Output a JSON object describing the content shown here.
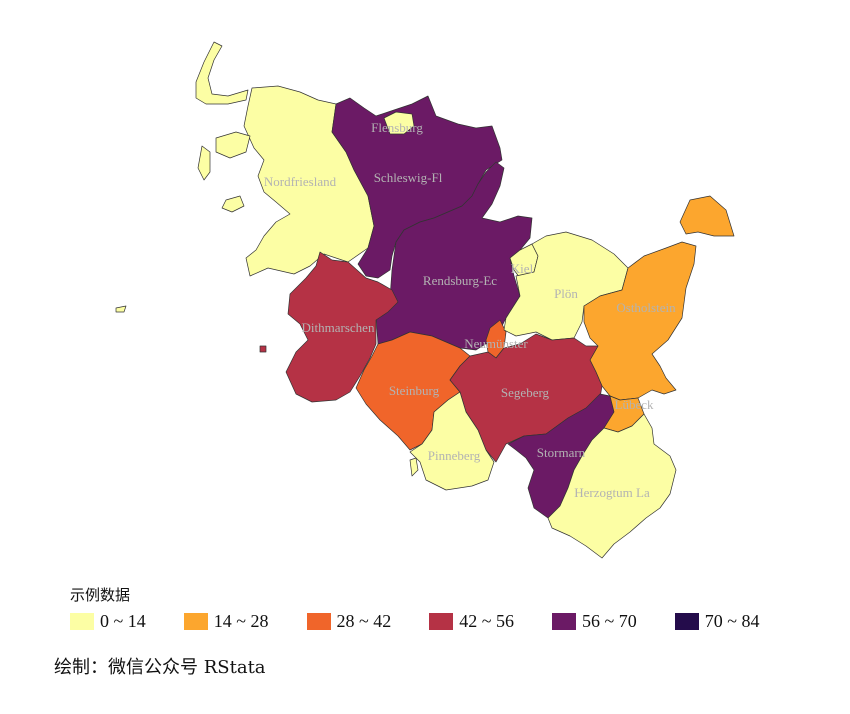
{
  "map": {
    "regions": [
      {
        "id": "nordfriesland",
        "label": "Nordfriesland",
        "class_index": 0
      },
      {
        "id": "flensburg",
        "label": "Flensburg",
        "class_index": 0
      },
      {
        "id": "schleswig-flensburg",
        "label": "Schleswig-Fl",
        "class_index": 4
      },
      {
        "id": "dithmarschen",
        "label": "Dithmarschen",
        "class_index": 3
      },
      {
        "id": "rendsburg-eckernfoerde",
        "label": "Rendsburg-Ec",
        "class_index": 4
      },
      {
        "id": "kiel",
        "label": "Kiel",
        "class_index": 0
      },
      {
        "id": "ploen",
        "label": "Plön",
        "class_index": 0
      },
      {
        "id": "ostholstein",
        "label": "Ostholstein",
        "class_index": 1
      },
      {
        "id": "neumuenster",
        "label": "Neumünster",
        "class_index": 2
      },
      {
        "id": "steinburg",
        "label": "Steinburg",
        "class_index": 2
      },
      {
        "id": "segeberg",
        "label": "Segeberg",
        "class_index": 3
      },
      {
        "id": "luebeck",
        "label": "Lübeck",
        "class_index": 1
      },
      {
        "id": "pinneberg",
        "label": "Pinneberg",
        "class_index": 0
      },
      {
        "id": "stormarn",
        "label": "Stormarn",
        "class_index": 4
      },
      {
        "id": "herzogtum-lauenburg",
        "label": "Herzogtum La",
        "class_index": 0
      }
    ]
  },
  "legend": {
    "title": "示例数据",
    "items": [
      {
        "label": "0 ~ 14",
        "color": "#fcfea4"
      },
      {
        "label": "14 ~ 28",
        "color": "#fca62e"
      },
      {
        "label": "28 ~ 42",
        "color": "#f0652a"
      },
      {
        "label": "42 ~ 56",
        "color": "#b53245"
      },
      {
        "label": "56 ~ 70",
        "color": "#6b1a65"
      },
      {
        "label": "70 ~ 84",
        "color": "#240c4b"
      }
    ]
  },
  "caption": "绘制：微信公众号 RStata"
}
